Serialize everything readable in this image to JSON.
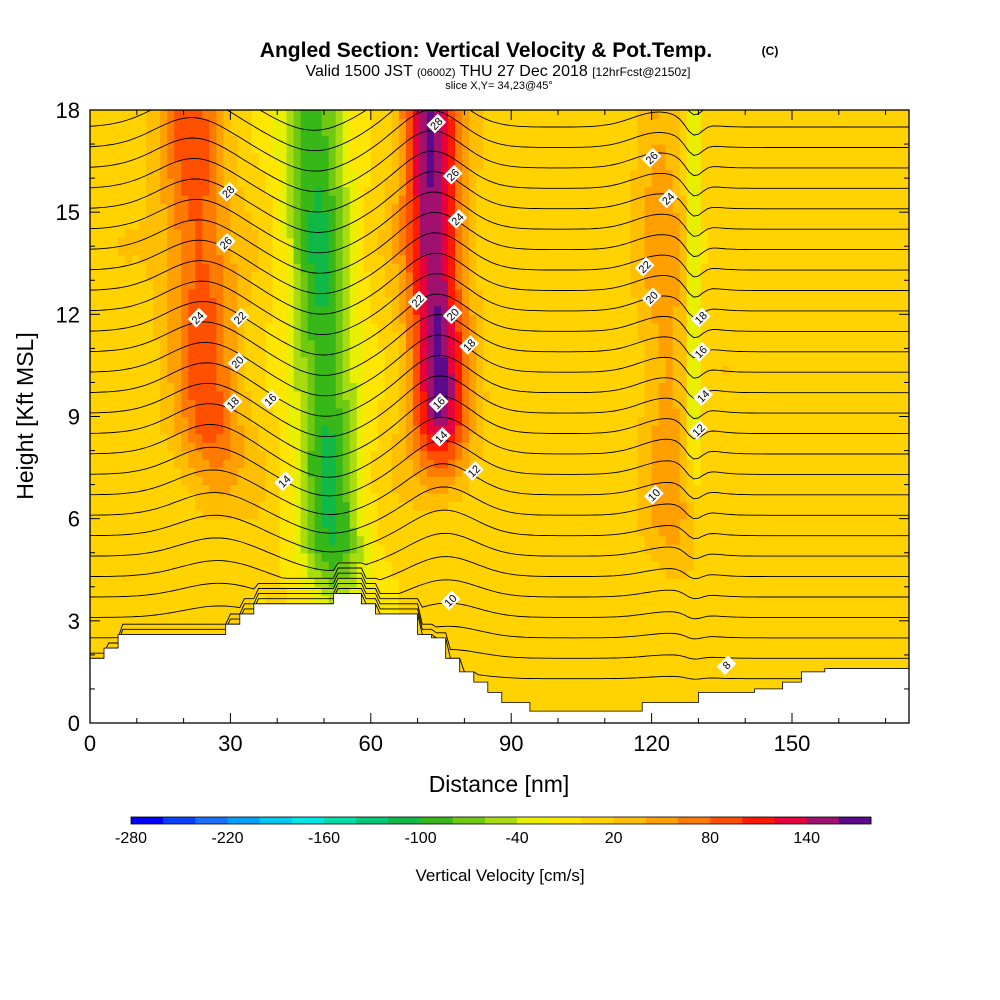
{
  "chart_data": {
    "type": "heatmap",
    "title": "Angled Section: Vertical Velocity & Pot.Temp.",
    "title_suffix": "(C)",
    "subtitle_parts": [
      "Valid 1500 JST",
      "(0600Z)",
      "THU 27 Dec 2018",
      "[12hrFcst@2150z]"
    ],
    "subtitle2": "slice X,Y= 34,23@45°",
    "xlabel": "Distance [nm]",
    "ylabel": "Height [Kft MSL]",
    "xlim": [
      0,
      175
    ],
    "ylim": [
      0,
      18
    ],
    "xticks": [
      0,
      30,
      60,
      90,
      120,
      150
    ],
    "yticks": [
      0,
      3,
      6,
      9,
      12,
      15,
      18
    ],
    "colorbar": {
      "label": "Vertical Velocity [cm/s]",
      "tick_labels": [
        "-280",
        "-220",
        "-160",
        "-100",
        "-40",
        "20",
        "80",
        "140"
      ],
      "levels": [
        -280,
        -260,
        -240,
        -220,
        -200,
        -180,
        -160,
        -140,
        -120,
        -100,
        -80,
        -60,
        -40,
        -20,
        0,
        20,
        40,
        60,
        80,
        100,
        120,
        140,
        160
      ],
      "colors": [
        "#0000ff",
        "#0a40ff",
        "#1a70ff",
        "#00a0ff",
        "#00c8f0",
        "#00e6e6",
        "#00dcaa",
        "#00c878",
        "#10b848",
        "#38b818",
        "#70c810",
        "#a8dc10",
        "#e8f000",
        "#ffe600",
        "#ffd200",
        "#ffbe00",
        "#ffa000",
        "#ff7a00",
        "#ff5000",
        "#ff1a00",
        "#e6003c",
        "#a0106e",
        "#5a0a8a"
      ]
    },
    "velocity_field_cm_s": {
      "background": 10,
      "features": [
        {
          "x": 26,
          "y_base": 7.5,
          "y_top": 18,
          "tilt_nm_per_kft": -0.45,
          "width_nm": 7,
          "peak": 80
        },
        {
          "x": 52,
          "y_base": 4.0,
          "y_top": 18,
          "tilt_nm_per_kft": -0.3,
          "width_nm": 7,
          "peak": -110
        },
        {
          "x": 75,
          "y_base": 8.0,
          "y_top": 18,
          "tilt_nm_per_kft": -0.25,
          "width_nm": 6,
          "peak": 150
        },
        {
          "x": 124,
          "y_base": 5.0,
          "y_top": 18,
          "tilt_nm_per_kft": -0.2,
          "width_nm": 5,
          "peak": 40
        },
        {
          "x": 129,
          "y_base": 8.0,
          "y_top": 18,
          "tilt_nm_per_kft": 0.0,
          "width_nm": 1.5,
          "peak": -60
        }
      ]
    },
    "terrain_kft": {
      "x": [
        0,
        3,
        3,
        6,
        6,
        29,
        29,
        32,
        32,
        35,
        35,
        52,
        52,
        58,
        58,
        61,
        61,
        70,
        70,
        73,
        73,
        76,
        76,
        79,
        79,
        82,
        82,
        85,
        85,
        88,
        88,
        94,
        94,
        118,
        118,
        130,
        130,
        142,
        142,
        148,
        148,
        152,
        152,
        157,
        157,
        175
      ],
      "y": [
        1.9,
        1.9,
        2.2,
        2.2,
        2.6,
        2.6,
        2.9,
        2.9,
        3.2,
        3.2,
        3.5,
        3.5,
        3.8,
        3.8,
        3.5,
        3.5,
        3.2,
        3.2,
        2.6,
        2.6,
        2.5,
        2.5,
        1.9,
        1.9,
        1.5,
        1.5,
        1.2,
        1.2,
        0.9,
        0.9,
        0.6,
        0.6,
        0.35,
        0.35,
        0.6,
        0.6,
        0.9,
        0.9,
        1.0,
        1.0,
        1.2,
        1.2,
        1.5,
        1.5,
        1.6,
        1.6
      ]
    },
    "isentrope_count": 30,
    "isentrope_labels": [
      {
        "text": "28",
        "x": 29.5,
        "y": 15.6
      },
      {
        "text": "26",
        "x": 29,
        "y": 14.1
      },
      {
        "text": "24",
        "x": 23,
        "y": 11.9
      },
      {
        "text": "22",
        "x": 32,
        "y": 11.9
      },
      {
        "text": "20",
        "x": 31.5,
        "y": 10.6
      },
      {
        "text": "18",
        "x": 30.5,
        "y": 9.4
      },
      {
        "text": "16",
        "x": 38.5,
        "y": 9.5
      },
      {
        "text": "14",
        "x": 41.5,
        "y": 7.1
      },
      {
        "text": "28",
        "x": 74,
        "y": 17.6
      },
      {
        "text": "26",
        "x": 77.5,
        "y": 16.1
      },
      {
        "text": "24",
        "x": 78.5,
        "y": 14.8
      },
      {
        "text": "22",
        "x": 70,
        "y": 12.4
      },
      {
        "text": "20",
        "x": 77.5,
        "y": 12.0
      },
      {
        "text": "18",
        "x": 81,
        "y": 11.1
      },
      {
        "text": "16",
        "x": 74.5,
        "y": 9.4
      },
      {
        "text": "14",
        "x": 75,
        "y": 8.4
      },
      {
        "text": "12",
        "x": 82,
        "y": 7.4
      },
      {
        "text": "10",
        "x": 77,
        "y": 3.6
      },
      {
        "text": "26",
        "x": 120,
        "y": 16.6
      },
      {
        "text": "24",
        "x": 123.5,
        "y": 15.4
      },
      {
        "text": "22",
        "x": 118.5,
        "y": 13.4
      },
      {
        "text": "20",
        "x": 120,
        "y": 12.5
      },
      {
        "text": "18",
        "x": 130.5,
        "y": 11.9
      },
      {
        "text": "16",
        "x": 130.5,
        "y": 10.9
      },
      {
        "text": "14",
        "x": 131,
        "y": 9.6
      },
      {
        "text": "12",
        "x": 130,
        "y": 8.6
      },
      {
        "text": "10",
        "x": 120.5,
        "y": 6.7
      },
      {
        "text": "8",
        "x": 136,
        "y": 1.7
      }
    ],
    "grid": false,
    "legend": "colorbar-bottom"
  }
}
